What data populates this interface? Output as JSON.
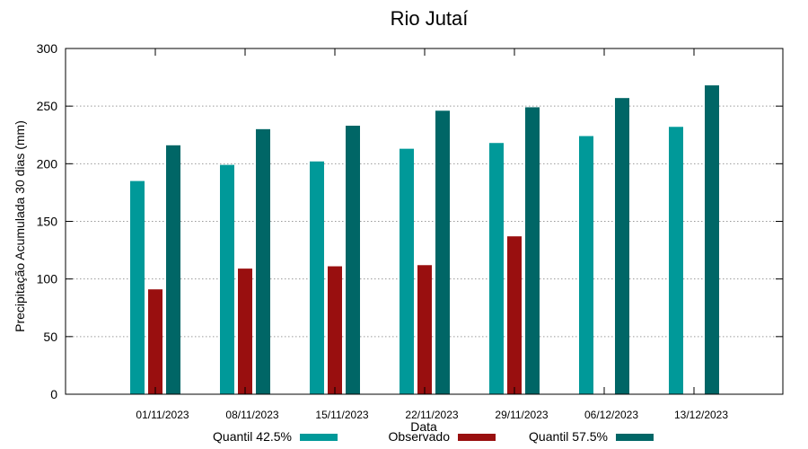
{
  "chart_data": {
    "type": "bar",
    "title": "Rio Jutaí",
    "xlabel": "Data",
    "ylabel": "Precipitação Acumulada 30 dias (mm)",
    "ylim": [
      0,
      300
    ],
    "yticks": [
      0,
      50,
      100,
      150,
      200,
      250,
      300
    ],
    "grid": true,
    "legend_position": "bottom",
    "categories": [
      "01/11/2023",
      "08/11/2023",
      "15/11/2023",
      "22/11/2023",
      "29/11/2023",
      "06/12/2023",
      "13/12/2023"
    ],
    "series": [
      {
        "name": "Quantil 42.5%",
        "color": "#009999",
        "values": [
          185,
          199,
          202,
          213,
          218,
          224,
          232
        ]
      },
      {
        "name": "Observado",
        "color": "#990f0f",
        "values": [
          91,
          109,
          111,
          112,
          137,
          null,
          null
        ]
      },
      {
        "name": "Quantil 57.5%",
        "color": "#006666",
        "values": [
          216,
          230,
          233,
          246,
          249,
          257,
          268
        ]
      }
    ]
  }
}
